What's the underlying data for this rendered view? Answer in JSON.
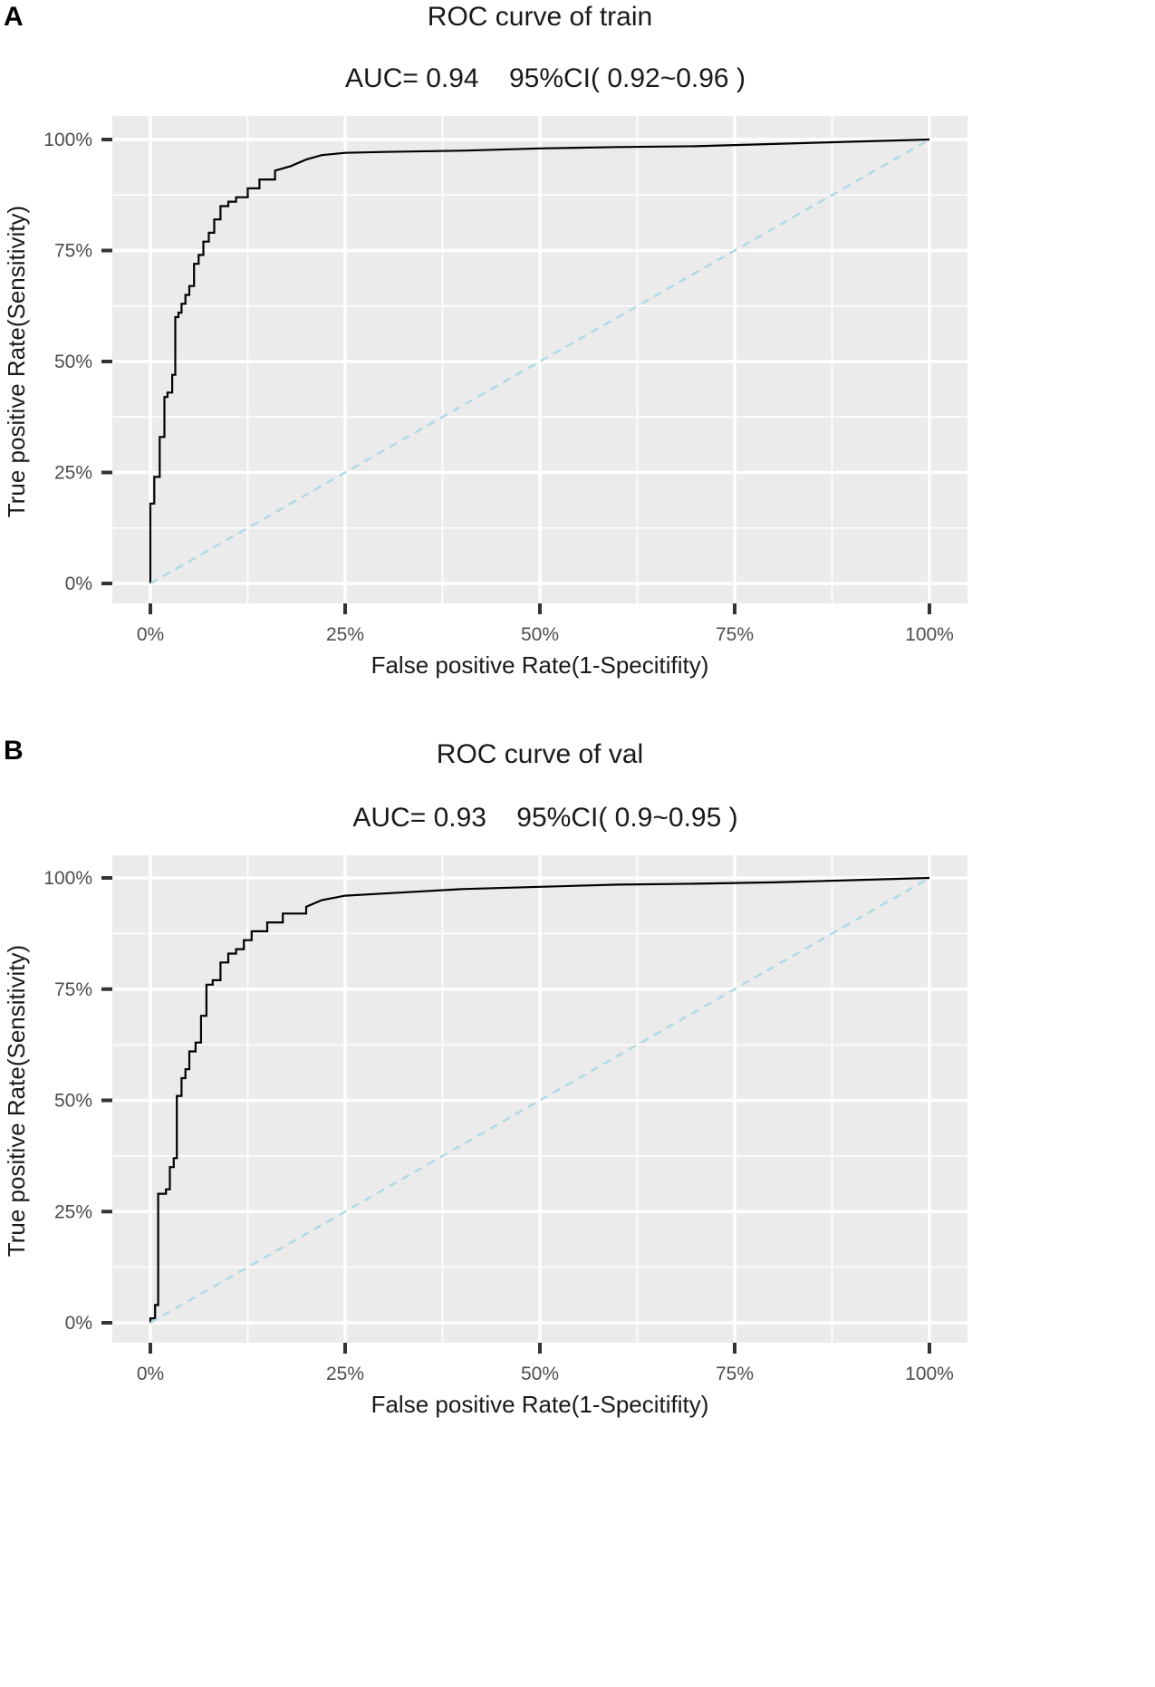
{
  "colors": {
    "panel_bg": "#ebebeb",
    "grid": "#ffffff",
    "curve": "#000000",
    "diagonal": "#add8e6",
    "tick": "#333333"
  },
  "chart_data": [
    {
      "panel": "A",
      "type": "line",
      "title": "ROC curve of  train",
      "subtitle": "AUC= 0.94    95%CI( 0.92~0.96 )",
      "xlabel": "False positive Rate(1-Specitifity)",
      "ylabel": "True positive Rate(Sensitivity)",
      "xlim": [
        0,
        1
      ],
      "ylim": [
        0,
        1
      ],
      "x_ticks": [
        0,
        0.25,
        0.5,
        0.75,
        1
      ],
      "x_tick_labels": [
        "0%",
        "25%",
        "50%",
        "75%",
        "100%"
      ],
      "y_ticks": [
        0,
        0.25,
        0.5,
        0.75,
        1
      ],
      "y_tick_labels": [
        "0%",
        "25%",
        "50%",
        "75%",
        "100%"
      ],
      "series": [
        {
          "name": "ROC",
          "style": "step",
          "x": [
            0,
            0,
            0.005,
            0.005,
            0.012,
            0.012,
            0.018,
            0.018,
            0.022,
            0.022,
            0.028,
            0.028,
            0.032,
            0.032,
            0.036,
            0.036,
            0.04,
            0.04,
            0.045,
            0.045,
            0.05,
            0.05,
            0.056,
            0.056,
            0.062,
            0.062,
            0.068,
            0.068,
            0.075,
            0.075,
            0.082,
            0.082,
            0.09,
            0.09,
            0.1,
            0.1,
            0.11,
            0.11,
            0.125,
            0.125,
            0.14,
            0.14,
            0.16,
            0.16,
            0.18,
            0.2,
            0.22,
            0.25,
            0.3,
            0.4,
            0.5,
            0.6,
            0.7,
            0.8,
            0.9,
            1.0
          ],
          "y": [
            0,
            0.18,
            0.18,
            0.24,
            0.24,
            0.33,
            0.33,
            0.42,
            0.42,
            0.43,
            0.43,
            0.47,
            0.47,
            0.6,
            0.6,
            0.61,
            0.61,
            0.63,
            0.63,
            0.65,
            0.65,
            0.67,
            0.67,
            0.72,
            0.72,
            0.74,
            0.74,
            0.77,
            0.77,
            0.79,
            0.79,
            0.82,
            0.82,
            0.85,
            0.85,
            0.86,
            0.86,
            0.87,
            0.87,
            0.89,
            0.89,
            0.91,
            0.91,
            0.93,
            0.94,
            0.955,
            0.965,
            0.97,
            0.972,
            0.975,
            0.98,
            0.983,
            0.985,
            0.99,
            0.995,
            1.0
          ]
        },
        {
          "name": "Reference",
          "style": "dashed",
          "x": [
            0,
            1
          ],
          "y": [
            0,
            1
          ]
        }
      ]
    },
    {
      "panel": "B",
      "type": "line",
      "title": "ROC curve of  val",
      "subtitle": "AUC= 0.93    95%CI( 0.9~0.95 )",
      "xlabel": "False positive Rate(1-Specitifity)",
      "ylabel": "True positive Rate(Sensitivity)",
      "xlim": [
        0,
        1
      ],
      "ylim": [
        0,
        1
      ],
      "x_ticks": [
        0,
        0.25,
        0.5,
        0.75,
        1
      ],
      "x_tick_labels": [
        "0%",
        "25%",
        "50%",
        "75%",
        "100%"
      ],
      "y_ticks": [
        0,
        0.25,
        0.5,
        0.75,
        1
      ],
      "y_tick_labels": [
        "0%",
        "25%",
        "50%",
        "75%",
        "100%"
      ],
      "series": [
        {
          "name": "ROC",
          "style": "step",
          "x": [
            0,
            0,
            0.006,
            0.006,
            0.01,
            0.01,
            0.02,
            0.02,
            0.025,
            0.025,
            0.03,
            0.03,
            0.034,
            0.034,
            0.04,
            0.04,
            0.045,
            0.045,
            0.05,
            0.05,
            0.058,
            0.058,
            0.065,
            0.065,
            0.072,
            0.072,
            0.08,
            0.08,
            0.09,
            0.09,
            0.1,
            0.1,
            0.11,
            0.11,
            0.12,
            0.12,
            0.13,
            0.13,
            0.15,
            0.15,
            0.17,
            0.17,
            0.2,
            0.2,
            0.22,
            0.25,
            0.3,
            0.4,
            0.5,
            0.6,
            0.7,
            0.8,
            0.9,
            1.0
          ],
          "y": [
            0,
            0.01,
            0.01,
            0.04,
            0.04,
            0.29,
            0.29,
            0.3,
            0.3,
            0.35,
            0.35,
            0.37,
            0.37,
            0.51,
            0.51,
            0.55,
            0.55,
            0.57,
            0.57,
            0.61,
            0.61,
            0.63,
            0.63,
            0.69,
            0.69,
            0.76,
            0.76,
            0.77,
            0.77,
            0.81,
            0.81,
            0.83,
            0.83,
            0.84,
            0.84,
            0.86,
            0.86,
            0.88,
            0.88,
            0.9,
            0.9,
            0.92,
            0.92,
            0.935,
            0.95,
            0.96,
            0.965,
            0.975,
            0.98,
            0.985,
            0.987,
            0.99,
            0.995,
            1.0
          ]
        },
        {
          "name": "Reference",
          "style": "dashed",
          "x": [
            0,
            1
          ],
          "y": [
            0,
            1
          ]
        }
      ]
    }
  ]
}
